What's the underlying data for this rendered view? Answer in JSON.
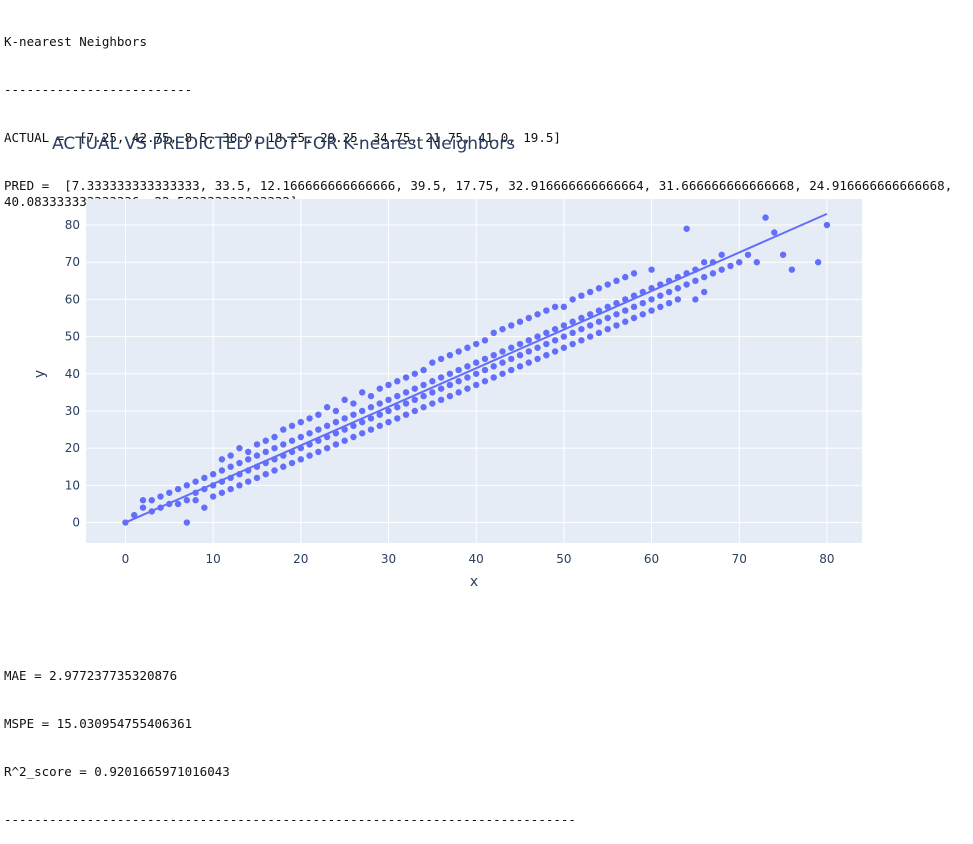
{
  "output": {
    "heading": "K-nearest Neighbors",
    "separator_short": "-------------------------",
    "actual_line": "ACTUAL =  [7.25, 42.75, 8.5, 38.0, 18.25, 29.25, 34.75, 21.75, 41.0, 19.5]",
    "pred_line": "PRED =  [7.333333333333333, 33.5, 12.166666666666666, 39.5, 17.75, 32.916666666666664, 31.666666666666668, 24.916666666666668, 40.083333333333336, 22.583333333333332]",
    "mae_line": "MAE = 2.977237735320876",
    "mspe_line": "MSPE = 15.030954755406361",
    "r2_line": "R^2_score = 0.9201665971016043",
    "separator_long": "----------------------------------------------------------------------------"
  },
  "colors": {
    "marker": "#636efa",
    "plot_bg": "#e5ecf6",
    "grid": "#ffffff",
    "text": "#2a3f5f"
  },
  "chart_data": {
    "type": "scatter",
    "title": "ACTUAL VS PREDICTED PLOT FOR K-nearest Neighbors",
    "xlabel": "x",
    "ylabel": "y",
    "xlim": [
      -4.5,
      84
    ],
    "ylim": [
      -5.5,
      87
    ],
    "xticks": [
      0,
      10,
      20,
      30,
      40,
      50,
      60,
      70,
      80
    ],
    "yticks": [
      0,
      10,
      20,
      30,
      40,
      50,
      60,
      70,
      80
    ],
    "grid": true,
    "series": [
      {
        "mode": "markers",
        "points": [
          [
            0,
            0
          ],
          [
            1,
            2
          ],
          [
            2,
            4
          ],
          [
            2,
            6
          ],
          [
            3,
            3
          ],
          [
            3,
            6
          ],
          [
            4,
            4
          ],
          [
            4,
            7
          ],
          [
            5,
            5
          ],
          [
            5,
            8
          ],
          [
            6,
            5
          ],
          [
            6,
            9
          ],
          [
            7,
            6
          ],
          [
            7,
            10
          ],
          [
            7,
            0
          ],
          [
            8,
            8
          ],
          [
            8,
            11
          ],
          [
            8,
            6
          ],
          [
            9,
            9
          ],
          [
            9,
            12
          ],
          [
            9,
            4
          ],
          [
            10,
            10
          ],
          [
            10,
            13
          ],
          [
            10,
            7
          ],
          [
            11,
            11
          ],
          [
            11,
            14
          ],
          [
            11,
            8
          ],
          [
            11,
            17
          ],
          [
            12,
            12
          ],
          [
            12,
            15
          ],
          [
            12,
            9
          ],
          [
            12,
            18
          ],
          [
            13,
            13
          ],
          [
            13,
            16
          ],
          [
            13,
            10
          ],
          [
            13,
            20
          ],
          [
            14,
            14
          ],
          [
            14,
            17
          ],
          [
            14,
            11
          ],
          [
            14,
            19
          ],
          [
            15,
            15
          ],
          [
            15,
            18
          ],
          [
            15,
            12
          ],
          [
            15,
            21
          ],
          [
            16,
            16
          ],
          [
            16,
            19
          ],
          [
            16,
            13
          ],
          [
            16,
            22
          ],
          [
            17,
            17
          ],
          [
            17,
            20
          ],
          [
            17,
            14
          ],
          [
            17,
            23
          ],
          [
            18,
            18
          ],
          [
            18,
            21
          ],
          [
            18,
            15
          ],
          [
            18,
            25
          ],
          [
            19,
            19
          ],
          [
            19,
            22
          ],
          [
            19,
            16
          ],
          [
            19,
            26
          ],
          [
            20,
            20
          ],
          [
            20,
            23
          ],
          [
            20,
            17
          ],
          [
            20,
            27
          ],
          [
            21,
            21
          ],
          [
            21,
            24
          ],
          [
            21,
            18
          ],
          [
            21,
            28
          ],
          [
            22,
            22
          ],
          [
            22,
            25
          ],
          [
            22,
            19
          ],
          [
            22,
            29
          ],
          [
            23,
            23
          ],
          [
            23,
            26
          ],
          [
            23,
            20
          ],
          [
            23,
            31
          ],
          [
            24,
            24
          ],
          [
            24,
            27
          ],
          [
            24,
            21
          ],
          [
            24,
            30
          ],
          [
            25,
            25
          ],
          [
            25,
            28
          ],
          [
            25,
            22
          ],
          [
            25,
            33
          ],
          [
            26,
            26
          ],
          [
            26,
            29
          ],
          [
            26,
            23
          ],
          [
            26,
            32
          ],
          [
            27,
            27
          ],
          [
            27,
            30
          ],
          [
            27,
            24
          ],
          [
            27,
            35
          ],
          [
            28,
            28
          ],
          [
            28,
            31
          ],
          [
            28,
            25
          ],
          [
            28,
            34
          ],
          [
            29,
            29
          ],
          [
            29,
            32
          ],
          [
            29,
            26
          ],
          [
            29,
            36
          ],
          [
            30,
            30
          ],
          [
            30,
            33
          ],
          [
            30,
            27
          ],
          [
            30,
            37
          ],
          [
            31,
            31
          ],
          [
            31,
            34
          ],
          [
            31,
            28
          ],
          [
            31,
            38
          ],
          [
            32,
            32
          ],
          [
            32,
            35
          ],
          [
            32,
            29
          ],
          [
            32,
            39
          ],
          [
            33,
            33
          ],
          [
            33,
            36
          ],
          [
            33,
            30
          ],
          [
            33,
            40
          ],
          [
            34,
            34
          ],
          [
            34,
            37
          ],
          [
            34,
            31
          ],
          [
            34,
            41
          ],
          [
            35,
            35
          ],
          [
            35,
            38
          ],
          [
            35,
            32
          ],
          [
            35,
            43
          ],
          [
            36,
            36
          ],
          [
            36,
            39
          ],
          [
            36,
            33
          ],
          [
            36,
            44
          ],
          [
            37,
            37
          ],
          [
            37,
            40
          ],
          [
            37,
            34
          ],
          [
            37,
            45
          ],
          [
            38,
            38
          ],
          [
            38,
            41
          ],
          [
            38,
            35
          ],
          [
            38,
            46
          ],
          [
            39,
            39
          ],
          [
            39,
            42
          ],
          [
            39,
            36
          ],
          [
            39,
            47
          ],
          [
            40,
            40
          ],
          [
            40,
            43
          ],
          [
            40,
            37
          ],
          [
            40,
            48
          ],
          [
            41,
            41
          ],
          [
            41,
            44
          ],
          [
            41,
            38
          ],
          [
            41,
            49
          ],
          [
            42,
            42
          ],
          [
            42,
            45
          ],
          [
            42,
            39
          ],
          [
            42,
            51
          ],
          [
            43,
            43
          ],
          [
            43,
            46
          ],
          [
            43,
            40
          ],
          [
            43,
            52
          ],
          [
            44,
            44
          ],
          [
            44,
            47
          ],
          [
            44,
            41
          ],
          [
            44,
            53
          ],
          [
            45,
            45
          ],
          [
            45,
            48
          ],
          [
            45,
            42
          ],
          [
            45,
            54
          ],
          [
            46,
            46
          ],
          [
            46,
            49
          ],
          [
            46,
            43
          ],
          [
            46,
            55
          ],
          [
            47,
            47
          ],
          [
            47,
            50
          ],
          [
            47,
            44
          ],
          [
            47,
            56
          ],
          [
            48,
            48
          ],
          [
            48,
            51
          ],
          [
            48,
            45
          ],
          [
            48,
            57
          ],
          [
            49,
            49
          ],
          [
            49,
            52
          ],
          [
            49,
            46
          ],
          [
            49,
            58
          ],
          [
            50,
            50
          ],
          [
            50,
            53
          ],
          [
            50,
            47
          ],
          [
            50,
            58
          ],
          [
            51,
            51
          ],
          [
            51,
            54
          ],
          [
            51,
            48
          ],
          [
            51,
            60
          ],
          [
            52,
            52
          ],
          [
            52,
            55
          ],
          [
            52,
            49
          ],
          [
            52,
            61
          ],
          [
            53,
            53
          ],
          [
            53,
            56
          ],
          [
            53,
            50
          ],
          [
            53,
            62
          ],
          [
            54,
            54
          ],
          [
            54,
            57
          ],
          [
            54,
            51
          ],
          [
            54,
            63
          ],
          [
            55,
            55
          ],
          [
            55,
            58
          ],
          [
            55,
            52
          ],
          [
            55,
            64
          ],
          [
            56,
            56
          ],
          [
            56,
            59
          ],
          [
            56,
            53
          ],
          [
            56,
            65
          ],
          [
            57,
            57
          ],
          [
            57,
            60
          ],
          [
            57,
            54
          ],
          [
            57,
            66
          ],
          [
            58,
            58
          ],
          [
            58,
            61
          ],
          [
            58,
            55
          ],
          [
            58,
            67
          ],
          [
            59,
            59
          ],
          [
            59,
            62
          ],
          [
            59,
            56
          ],
          [
            60,
            60
          ],
          [
            60,
            63
          ],
          [
            60,
            57
          ],
          [
            60,
            68
          ],
          [
            61,
            61
          ],
          [
            61,
            64
          ],
          [
            61,
            58
          ],
          [
            62,
            62
          ],
          [
            62,
            65
          ],
          [
            62,
            59
          ],
          [
            63,
            63
          ],
          [
            63,
            66
          ],
          [
            63,
            60
          ],
          [
            64,
            64
          ],
          [
            64,
            67
          ],
          [
            64,
            79
          ],
          [
            65,
            65
          ],
          [
            65,
            68
          ],
          [
            65,
            60
          ],
          [
            66,
            66
          ],
          [
            66,
            70
          ],
          [
            66,
            62
          ],
          [
            67,
            67
          ],
          [
            67,
            70
          ],
          [
            68,
            68
          ],
          [
            68,
            72
          ],
          [
            69,
            69
          ],
          [
            70,
            70
          ],
          [
            71,
            72
          ],
          [
            72,
            70
          ],
          [
            73,
            82
          ],
          [
            74,
            78
          ],
          [
            75,
            72
          ],
          [
            76,
            68
          ],
          [
            79,
            70
          ],
          [
            80,
            80
          ]
        ]
      },
      {
        "mode": "line",
        "name": "",
        "points": [
          [
            0,
            0
          ],
          [
            80,
            83
          ]
        ]
      }
    ]
  }
}
